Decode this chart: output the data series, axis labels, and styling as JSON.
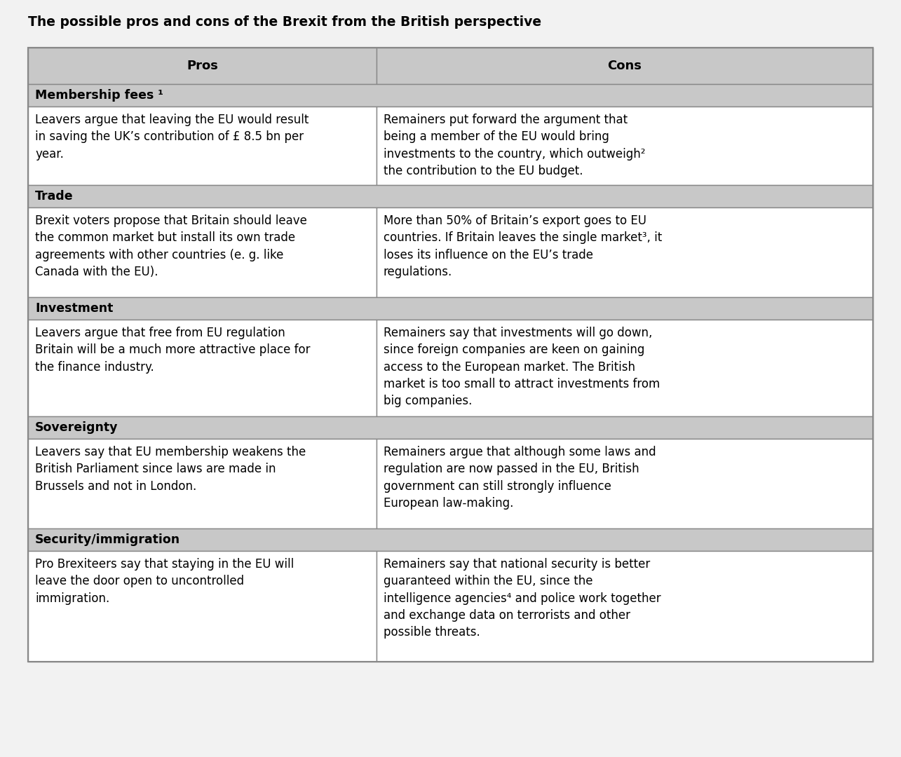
{
  "title": "The possible pros and cons of the Brexit from the British perspective",
  "header_bg": "#c8c8c8",
  "section_bg": "#c8c8c8",
  "cell_bg": "#ffffff",
  "outer_bg": "#e8e8e8",
  "border_color": "#888888",
  "header_pros": "Pros",
  "header_cons": "Cons",
  "sections": [
    {
      "label": "Membership fees ¹",
      "pros": "Leavers argue that leaving the EU would result\nin saving the UK’s contribution of £ 8.5 bn per\nyear.",
      "cons": "Remainers put forward the argument that\nbeing a member of the EU would bring\ninvestments to the country, which outweigh²\nthe contribution to the EU budget."
    },
    {
      "label": "Trade",
      "pros": "Brexit voters propose that Britain should leave\nthe common market but install its own trade\nagreements with other countries (e. g. like\nCanada with the EU).",
      "cons": "More than 50% of Britain’s export goes to EU\ncountries. If Britain leaves the single market³, it\nloses its influence on the EU’s trade\nregulations."
    },
    {
      "label": "Investment",
      "pros": "Leavers argue that free from EU regulation\nBritain will be a much more attractive place for\nthe finance industry.",
      "cons": "Remainers say that investments will go down,\nsince foreign companies are keen on gaining\naccess to the European market. The British\nmarket is too small to attract investments from\nbig companies."
    },
    {
      "label": "Sovereignty",
      "pros": "Leavers say that EU membership weakens the\nBritish Parliament since laws are made in\nBrussels and not in London.",
      "cons": "Remainers argue that although some laws and\nregulation are now passed in the EU, British\ngovernment can still strongly influence\nEuropean law-making."
    },
    {
      "label": "Security/immigration",
      "pros": "Pro Brexiteers say that staying in the EU will\nleave the door open to uncontrolled\nimmigration.",
      "cons": "Remainers say that national security is better\nguaranteed within the EU, since the\nintelligence agencies⁴ and police work together\nand exchange data on terrorists and other\npossible threats."
    }
  ],
  "title_fontsize": 13.5,
  "header_fontsize": 13,
  "section_fontsize": 12.5,
  "cell_fontsize": 12,
  "fig_bg": "#f2f2f2"
}
